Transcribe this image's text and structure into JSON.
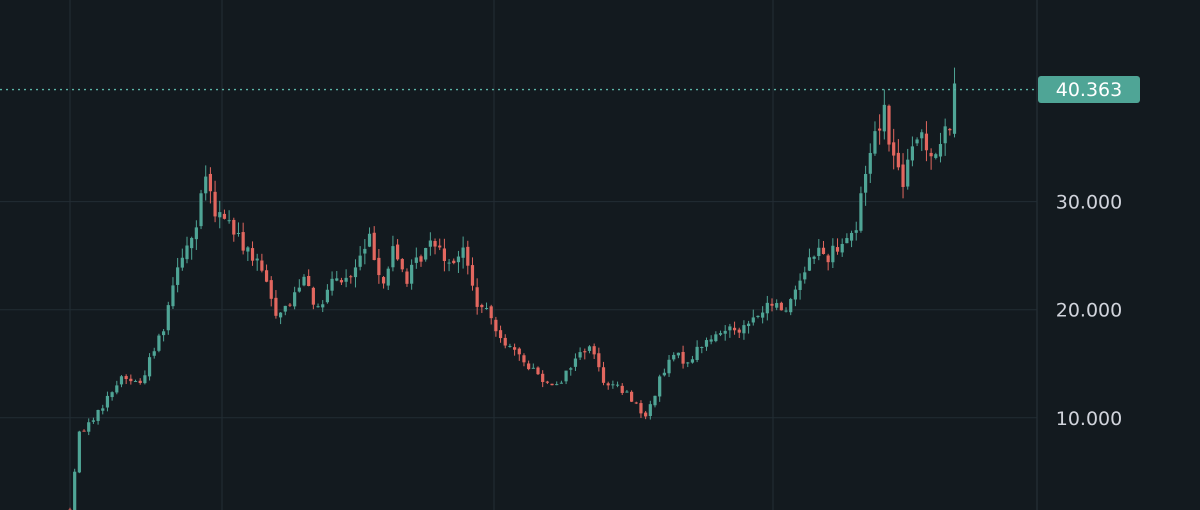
{
  "chart_data": {
    "type": "candlestick",
    "title": "",
    "xlabel": "",
    "ylabel": "",
    "ylim": [
      0,
      46.5
    ],
    "y_ticks": [
      {
        "value": 10,
        "label": "10.000"
      },
      {
        "value": 20,
        "label": "20.000"
      },
      {
        "value": 30,
        "label": "30.000"
      }
    ],
    "grid": true,
    "last_price": 40.363,
    "last_price_label": "40.363",
    "colors": {
      "background": "#131a1f",
      "grid": "#232d34",
      "up": "#4fa596",
      "down": "#e2675f",
      "price_line": "#5bb4a6",
      "price_tag": "#4fa596",
      "tick_text": "#d1d4dc"
    },
    "anchors": [
      [
        0,
        1.5
      ],
      [
        2,
        8.5
      ],
      [
        6,
        10.5
      ],
      [
        11,
        13.8
      ],
      [
        15,
        13.2
      ],
      [
        20,
        18.5
      ],
      [
        23,
        24.5
      ],
      [
        27,
        27.5
      ],
      [
        29,
        32.5
      ],
      [
        31,
        28.5
      ],
      [
        33,
        28.8
      ],
      [
        36,
        26.5
      ],
      [
        38,
        25.5
      ],
      [
        41,
        23.5
      ],
      [
        44,
        19.8
      ],
      [
        47,
        20.5
      ],
      [
        50,
        23.5
      ],
      [
        53,
        19.8
      ],
      [
        56,
        22.5
      ],
      [
        60,
        23.0
      ],
      [
        64,
        26.5
      ],
      [
        67,
        22.5
      ],
      [
        69,
        25.5
      ],
      [
        72,
        22.8
      ],
      [
        75,
        25.0
      ],
      [
        78,
        26.5
      ],
      [
        81,
        24.5
      ],
      [
        84,
        25.5
      ],
      [
        87,
        20.5
      ],
      [
        90,
        19.2
      ],
      [
        93,
        17.0
      ],
      [
        96,
        15.5
      ],
      [
        99,
        14.5
      ],
      [
        102,
        13.2
      ],
      [
        105,
        13.5
      ],
      [
        108,
        15.5
      ],
      [
        111,
        16.8
      ],
      [
        114,
        13.5
      ],
      [
        117,
        12.8
      ],
      [
        120,
        11.8
      ],
      [
        123,
        10.0
      ],
      [
        126,
        13.5
      ],
      [
        129,
        15.8
      ],
      [
        132,
        15.2
      ],
      [
        135,
        16.8
      ],
      [
        138,
        17.5
      ],
      [
        141,
        18.5
      ],
      [
        144,
        18.3
      ],
      [
        147,
        19.5
      ],
      [
        150,
        20.5
      ],
      [
        153,
        20.0
      ],
      [
        156,
        23.0
      ],
      [
        159,
        25.5
      ],
      [
        162,
        25.0
      ],
      [
        165,
        26.5
      ],
      [
        168,
        27.5
      ],
      [
        170,
        33.0
      ],
      [
        172,
        36.5
      ],
      [
        174,
        38.5
      ],
      [
        176,
        34.0
      ],
      [
        178,
        32.0
      ],
      [
        180,
        34.5
      ],
      [
        182,
        36.5
      ],
      [
        184,
        34.5
      ],
      [
        186,
        35.0
      ],
      [
        188,
        37.5
      ],
      [
        189,
        40.0
      ]
    ]
  }
}
